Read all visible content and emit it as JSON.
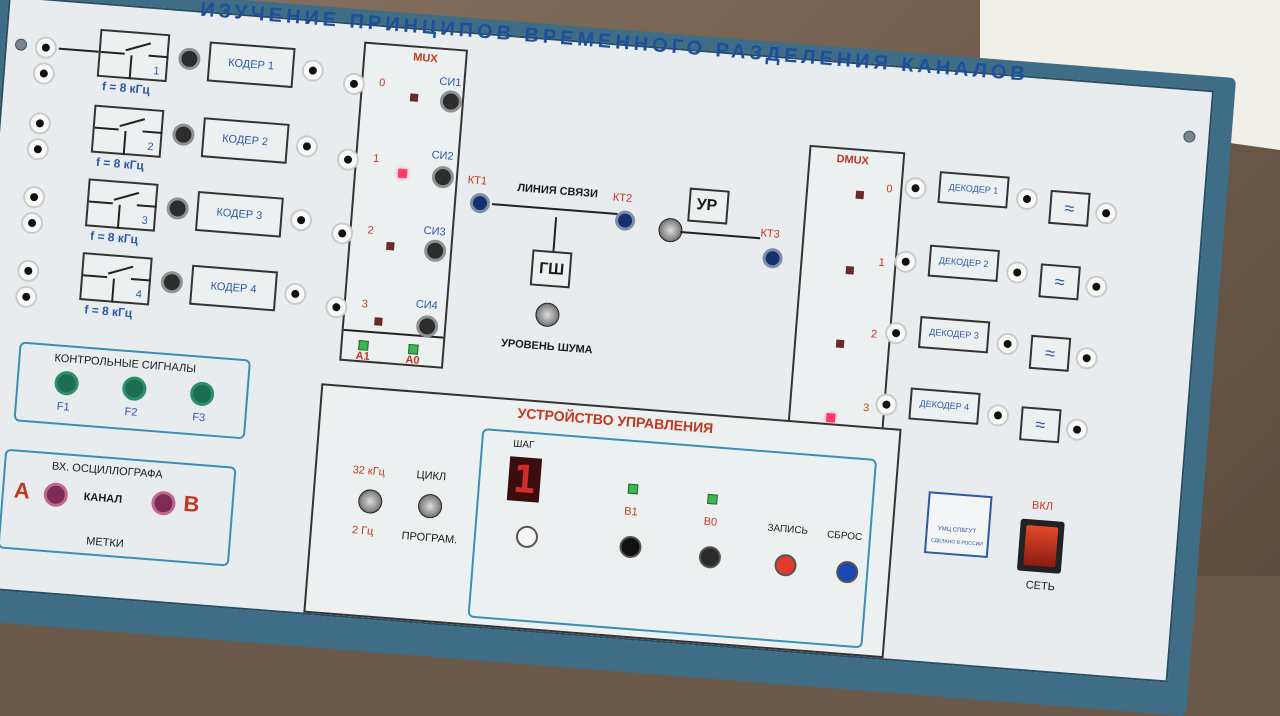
{
  "title": "ИЗУЧЕНИЕ ПРИНЦИПОВ ВРЕМЕННОГО РАЗДЕЛЕНИЯ КАНАЛОВ",
  "coders": [
    {
      "label": "КОДЕР 1",
      "num": "1",
      "freq": "f = 8 кГц"
    },
    {
      "label": "КОДЕР 2",
      "num": "2",
      "freq": "f = 8 кГц"
    },
    {
      "label": "КОДЕР 3",
      "num": "3",
      "freq": "f = 8 кГц"
    },
    {
      "label": "КОДЕР 4",
      "num": "4",
      "freq": "f = 8 кГц"
    }
  ],
  "mux": {
    "label": "MUX",
    "inputs": [
      "0",
      "1",
      "2",
      "3"
    ],
    "outputs": [
      "СИ1",
      "СИ2",
      "СИ3",
      "СИ4"
    ],
    "addr": [
      "A1",
      "A0"
    ]
  },
  "link": {
    "kt1": "КТ1",
    "kt2": "КТ2",
    "kt3": "КТ3",
    "line_label": "ЛИНИЯ СВЯЗИ",
    "amp": "УР",
    "noise": "ГШ",
    "noise_level": "УРОВЕНЬ ШУМА"
  },
  "dmux": {
    "label": "DMUX",
    "outputs": [
      "0",
      "1",
      "2",
      "3"
    ],
    "addr": [
      "B1",
      "B0"
    ]
  },
  "decoders": [
    {
      "label": "ДЕКОДЕР 1",
      "num": "1"
    },
    {
      "label": "ДЕКОДЕР 2",
      "num": "2"
    },
    {
      "label": "ДЕКОДЕР 3",
      "num": "3"
    },
    {
      "label": "ДЕКОДЕР 4",
      "num": "4"
    }
  ],
  "control_signals": {
    "title": "КОНТРОЛЬНЫЕ СИГНАЛЫ",
    "items": [
      "F1",
      "F2",
      "F3"
    ]
  },
  "scope": {
    "title": "ВХ. ОСЦИЛЛОГРАФА",
    "a": "A",
    "channel": "КАНАЛ",
    "b": "B",
    "marks": "МЕТКИ"
  },
  "controller": {
    "title": "УСТРОЙСТВО УПРАВЛЕНИЯ",
    "freq_top": "32 кГц",
    "freq_bottom": "2 Гц",
    "cycle": "ЦИКЛ",
    "program": "ПРОГРАМ.",
    "step": "ШАГ",
    "step_value": "1",
    "b1": "B1",
    "b0": "B0",
    "write": "ЗАПИСЬ",
    "reset": "СБРОС"
  },
  "logo": {
    "line1": "УМЦ СПБГУТ",
    "line2": "СДЕЛАНО В РОССИИ"
  },
  "power": {
    "on": "ВКЛ",
    "net": "СЕТЬ"
  },
  "colors": {
    "panel": "#e9ecee",
    "frame": "#3f6d86",
    "text_blue": "#2a5aa8",
    "title_blue": "#1d4f9c",
    "accent_red": "#c1381f"
  }
}
